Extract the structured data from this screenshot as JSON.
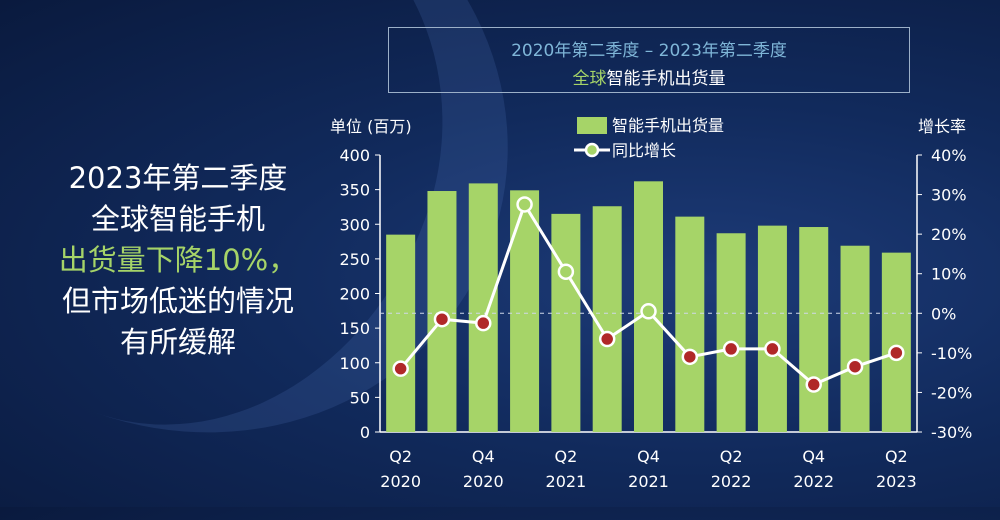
{
  "headline": {
    "line1": "2023年第二季度",
    "line2": "全球智能手机",
    "line3": "出货量下降10%，",
    "line4": "但市场低迷的情况",
    "line5": "有所缓解"
  },
  "chart_title": {
    "line1": "2020年第二季度 – 2023年第二季度",
    "line2_green": "全球",
    "line2_rest": "智能手机出货量"
  },
  "chart_data": {
    "type": "bar",
    "ylabel": "单位 (百万)",
    "y2label": "增长率",
    "ylim": [
      0,
      400
    ],
    "y2lim": [
      -30,
      40
    ],
    "yticks": [
      "400",
      "350",
      "300",
      "250",
      "200",
      "150",
      "100",
      "50",
      "0"
    ],
    "y2ticks": [
      "40%",
      "30%",
      "20%",
      "10%",
      "0%",
      "-10%",
      "-20%",
      "-30%"
    ],
    "xtick_labels": [
      {
        "q": "Q2",
        "y": "2020",
        "index": 0
      },
      {
        "q": "Q4",
        "y": "2020",
        "index": 2
      },
      {
        "q": "Q2",
        "y": "2021",
        "index": 4
      },
      {
        "q": "Q4",
        "y": "2021",
        "index": 6
      },
      {
        "q": "Q2",
        "y": "2022",
        "index": 8
      },
      {
        "q": "Q4",
        "y": "2022",
        "index": 10
      },
      {
        "q": "Q2",
        "y": "2023",
        "index": 12
      }
    ],
    "categories": [
      "Q2 2020",
      "Q3 2020",
      "Q4 2020",
      "Q1 2021",
      "Q2 2021",
      "Q3 2021",
      "Q4 2021",
      "Q1 2022",
      "Q2 2022",
      "Q3 2022",
      "Q4 2022",
      "Q1 2023",
      "Q2 2023"
    ],
    "series": [
      {
        "name": "智能手机出货量",
        "type": "bar",
        "color": "#a6d468",
        "values": [
          285,
          348,
          359,
          349,
          315,
          326,
          362,
          311,
          287,
          298,
          296,
          269,
          259
        ]
      },
      {
        "name": "同比增长",
        "type": "line",
        "axis": "right",
        "color": "#ffffff",
        "marker_fill": "#b02828",
        "values": [
          -14,
          -1.5,
          -2.5,
          27.5,
          10.5,
          -6.5,
          0.5,
          -11,
          -9,
          -9,
          -18,
          -13.5,
          -10
        ]
      }
    ],
    "reference_line": {
      "axis": "right",
      "value": 0
    },
    "legend_position": "top"
  }
}
